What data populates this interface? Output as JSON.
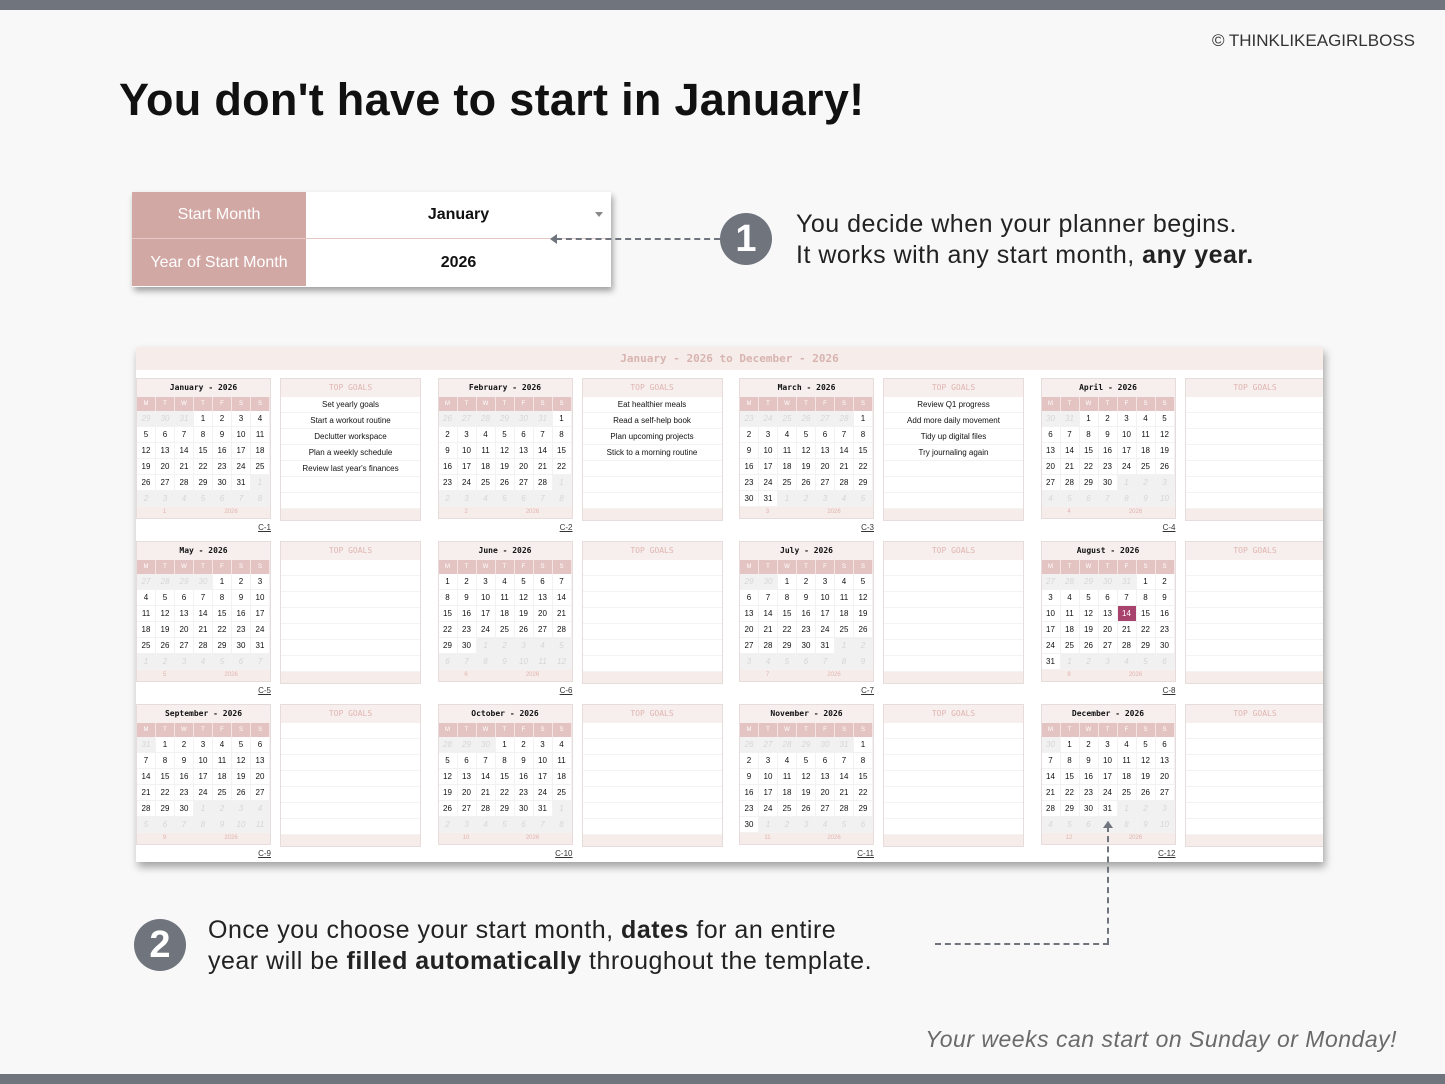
{
  "copyright": "© THINKLIKEAGIRLBOSS",
  "title": "You don't have to start in January!",
  "setup": {
    "start_month_label": "Start Month",
    "start_month_value": "January",
    "year_label": "Year of Start Month",
    "year_value": "2026"
  },
  "callout1": {
    "number": "1",
    "line1": "You decide when your planner begins.",
    "line2_a": "It works with any start month, ",
    "line2_b": "any year."
  },
  "callout2": {
    "number": "2",
    "l1a": "Once you choose your start month, ",
    "l1b": "dates",
    "l1c": " for an entire",
    "l2a": "year will be ",
    "l2b": "filled automatically",
    "l2c": " throughout the template."
  },
  "footer_note": "Your weeks can start on Sunday or Monday!",
  "panel": {
    "title": "January - 2026 to December - 2026",
    "weekdays": [
      "M",
      "T",
      "W",
      "T",
      "F",
      "S",
      "S"
    ],
    "goals_header": "TOP GOALS",
    "highlight": {
      "month": 8,
      "day": 14,
      "color": "#a8436e"
    },
    "months": [
      {
        "name": "January - 2026",
        "prev": [
          29,
          30,
          31
        ],
        "count": 31,
        "next": [
          1,
          2,
          3,
          4,
          5,
          6,
          7,
          8
        ],
        "num": "1",
        "year": "2026",
        "link": "C-1",
        "goals": [
          "Set yearly goals",
          "Start a workout routine",
          "Declutter workspace",
          "Plan a weekly schedule",
          "Review last year's finances"
        ]
      },
      {
        "name": "February - 2026",
        "prev": [
          26,
          27,
          28,
          29,
          30,
          31
        ],
        "count": 28,
        "next": [
          1,
          2,
          3,
          4,
          5,
          6,
          7,
          8
        ],
        "num": "2",
        "year": "2026",
        "link": "C-2",
        "goals": [
          "Eat healthier meals",
          "Read a self-help book",
          "Plan upcoming projects",
          "Stick to a morning routine"
        ]
      },
      {
        "name": "March - 2026",
        "prev": [
          23,
          24,
          25,
          26,
          27,
          28
        ],
        "count": 31,
        "next": [
          1,
          2,
          3,
          4,
          5
        ],
        "num": "3",
        "year": "2026",
        "link": "C-3",
        "goals": [
          "Review Q1 progress",
          "Add more daily movement",
          "Tidy up digital files",
          "Try journaling again"
        ]
      },
      {
        "name": "April - 2026",
        "prev": [
          30,
          31
        ],
        "count": 30,
        "next": [
          1,
          2,
          3,
          4,
          5,
          6,
          7,
          8,
          9,
          10
        ],
        "num": "4",
        "year": "2026",
        "link": "C-4",
        "goals": []
      },
      {
        "name": "May - 2026",
        "prev": [
          27,
          28,
          29,
          30
        ],
        "count": 31,
        "next": [
          1,
          2,
          3,
          4,
          5,
          6,
          7
        ],
        "num": "5",
        "year": "2026",
        "link": "C-5",
        "goals": []
      },
      {
        "name": "June - 2026",
        "prev": [],
        "count": 30,
        "next": [
          1,
          2,
          3,
          4,
          5,
          6,
          7,
          8,
          9,
          10,
          11,
          12
        ],
        "num": "6",
        "year": "2026",
        "link": "C-6",
        "goals": []
      },
      {
        "name": "July - 2026",
        "prev": [
          29,
          30
        ],
        "count": 31,
        "next": [
          1,
          2,
          3,
          4,
          5,
          6,
          7,
          8,
          9
        ],
        "num": "7",
        "year": "2026",
        "link": "C-7",
        "goals": []
      },
      {
        "name": "August - 2026",
        "prev": [
          27,
          28,
          29,
          30,
          31
        ],
        "count": 31,
        "next": [
          1,
          2,
          3,
          4,
          5,
          6
        ],
        "num": "8",
        "year": "2026",
        "link": "C-8",
        "goals": []
      },
      {
        "name": "September - 2026",
        "prev": [
          31
        ],
        "count": 30,
        "next": [
          1,
          2,
          3,
          4,
          5,
          6,
          7,
          8,
          9,
          10,
          11
        ],
        "num": "9",
        "year": "2026",
        "link": "C-9",
        "goals": []
      },
      {
        "name": "October - 2026",
        "prev": [
          28,
          29,
          30
        ],
        "count": 31,
        "next": [
          1,
          2,
          3,
          4,
          5,
          6,
          7,
          8
        ],
        "num": "10",
        "year": "2026",
        "link": "C-10",
        "goals": []
      },
      {
        "name": "November - 2026",
        "prev": [
          26,
          27,
          28,
          29,
          30,
          31
        ],
        "count": 30,
        "next": [
          1,
          2,
          3,
          4,
          5,
          6
        ],
        "num": "11",
        "year": "2026",
        "link": "C-11",
        "goals": []
      },
      {
        "name": "December - 2026",
        "prev": [
          30
        ],
        "count": 31,
        "next": [
          1,
          2,
          3,
          4,
          5,
          6,
          7,
          8,
          9,
          10
        ],
        "num": "12",
        "year": "2026",
        "link": "C-12",
        "goals": []
      }
    ]
  }
}
